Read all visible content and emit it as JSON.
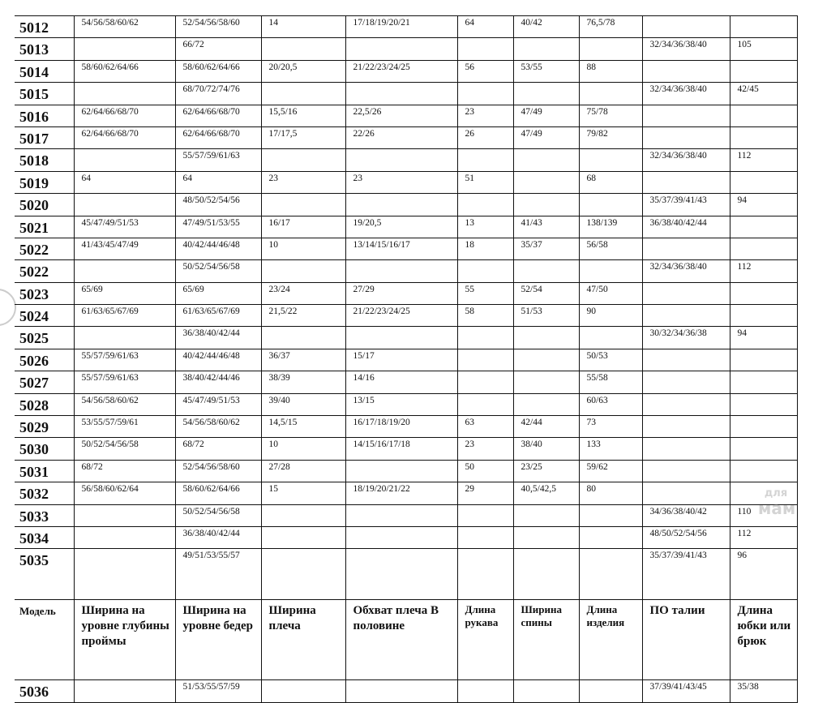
{
  "header": [
    "Модель",
    "Ширина на уровне глубины проймы",
    "Ширина на уровне бедер",
    "Ширина плеча",
    "Обхват плеча В половине",
    "Длина рукава",
    "Ширина спины",
    "Длина изделия",
    "ПО талии",
    "Длина юбки или брюк"
  ],
  "rows": [
    [
      "5012",
      "54/56/58/60/62",
      "52/54/56/58/60",
      "14",
      "17/18/19/20/21",
      "64",
      "40/42",
      "76,5/78",
      "",
      ""
    ],
    [
      "5013",
      "",
      "66/72",
      "",
      "",
      "",
      "",
      "",
      "32/34/36/38/40",
      "105"
    ],
    [
      "5014",
      "58/60/62/64/66",
      "58/60/62/64/66",
      "20/20,5",
      "21/22/23/24/25",
      "56",
      "53/55",
      "88",
      "",
      ""
    ],
    [
      "5015",
      "",
      "68/70/72/74/76",
      "",
      "",
      "",
      "",
      "",
      "32/34/36/38/40",
      "42/45"
    ],
    [
      "5016",
      "62/64/66/68/70",
      "62/64/66/68/70",
      "15,5/16",
      "22,5/26",
      "23",
      "47/49",
      "75/78",
      "",
      ""
    ],
    [
      "5017",
      "62/64/66/68/70",
      "62/64/66/68/70",
      "17/17,5",
      "22/26",
      "26",
      "47/49",
      "79/82",
      "",
      ""
    ],
    [
      "5018",
      "",
      "55/57/59/61/63",
      "",
      "",
      "",
      "",
      "",
      "32/34/36/38/40",
      "112"
    ],
    [
      "5019",
      "64",
      "64",
      "23",
      "23",
      "51",
      "",
      "68",
      "",
      ""
    ],
    [
      "5020",
      "",
      "48/50/52/54/56",
      "",
      "",
      "",
      "",
      "",
      "35/37/39/41/43",
      "94"
    ],
    [
      "5021",
      "45/47/49/51/53",
      "47/49/51/53/55",
      "16/17",
      "19/20,5",
      "13",
      "41/43",
      "138/139",
      "36/38/40/42/44",
      ""
    ],
    [
      "5022",
      "41/43/45/47/49",
      "40/42/44/46/48",
      "10",
      "13/14/15/16/17",
      "18",
      "35/37",
      "56/58",
      "",
      ""
    ],
    [
      "5022",
      "",
      "50/52/54/56/58",
      "",
      "",
      "",
      "",
      "",
      "32/34/36/38/40",
      "112"
    ],
    [
      "5023",
      "65/69",
      "65/69",
      "23/24",
      "27/29",
      "55",
      "52/54",
      "47/50",
      "",
      ""
    ],
    [
      "5024",
      "61/63/65/67/69",
      "61/63/65/67/69",
      "21,5/22",
      "21/22/23/24/25",
      "58",
      "51/53",
      "90",
      "",
      ""
    ],
    [
      "5025",
      "",
      "36/38/40/42/44",
      "",
      "",
      "",
      "",
      "",
      "30/32/34/36/38",
      "94"
    ],
    [
      "5026",
      "55/57/59/61/63",
      "40/42/44/46/48",
      "36/37",
      "15/17",
      "",
      "",
      "50/53",
      "",
      ""
    ],
    [
      "5027",
      "55/57/59/61/63",
      "38/40/42/44/46",
      "38/39",
      "14/16",
      "",
      "",
      "55/58",
      "",
      ""
    ],
    [
      "5028",
      "54/56/58/60/62",
      "45/47/49/51/53",
      "39/40",
      "13/15",
      "",
      "",
      "60/63",
      "",
      ""
    ],
    [
      "5029",
      "53/55/57/59/61",
      "54/56/58/60/62",
      "14,5/15",
      "16/17/18/19/20",
      "63",
      "42/44",
      "73",
      "",
      ""
    ],
    [
      "5030",
      "50/52/54/56/58",
      "68/72",
      "10",
      "14/15/16/17/18",
      "23",
      "38/40",
      "133",
      "",
      ""
    ],
    [
      "5031",
      "68/72",
      "52/54/56/58/60",
      "27/28",
      "",
      "50",
      "23/25",
      "59/62",
      "",
      ""
    ],
    [
      "5032",
      "56/58/60/62/64",
      "58/60/62/64/66",
      "15",
      "18/19/20/21/22",
      "29",
      "40,5/42,5",
      "80",
      "",
      ""
    ],
    [
      "5033",
      "",
      "50/52/54/56/58",
      "",
      "",
      "",
      "",
      "",
      "34/36/38/40/42",
      "110"
    ],
    [
      "5034",
      "",
      "36/38/40/42/44",
      "",
      "",
      "",
      "",
      "",
      "48/50/52/54/56",
      "112"
    ],
    [
      "5035",
      "",
      "49/51/53/55/57",
      "",
      "",
      "",
      "",
      "",
      "35/37/39/41/43",
      "96"
    ]
  ],
  "last_row": [
    "5036",
    "",
    "51/53/55/57/59",
    "",
    "",
    "",
    "",
    "",
    "37/39/41/43/45",
    "35/38"
  ],
  "watermark": "для мам"
}
